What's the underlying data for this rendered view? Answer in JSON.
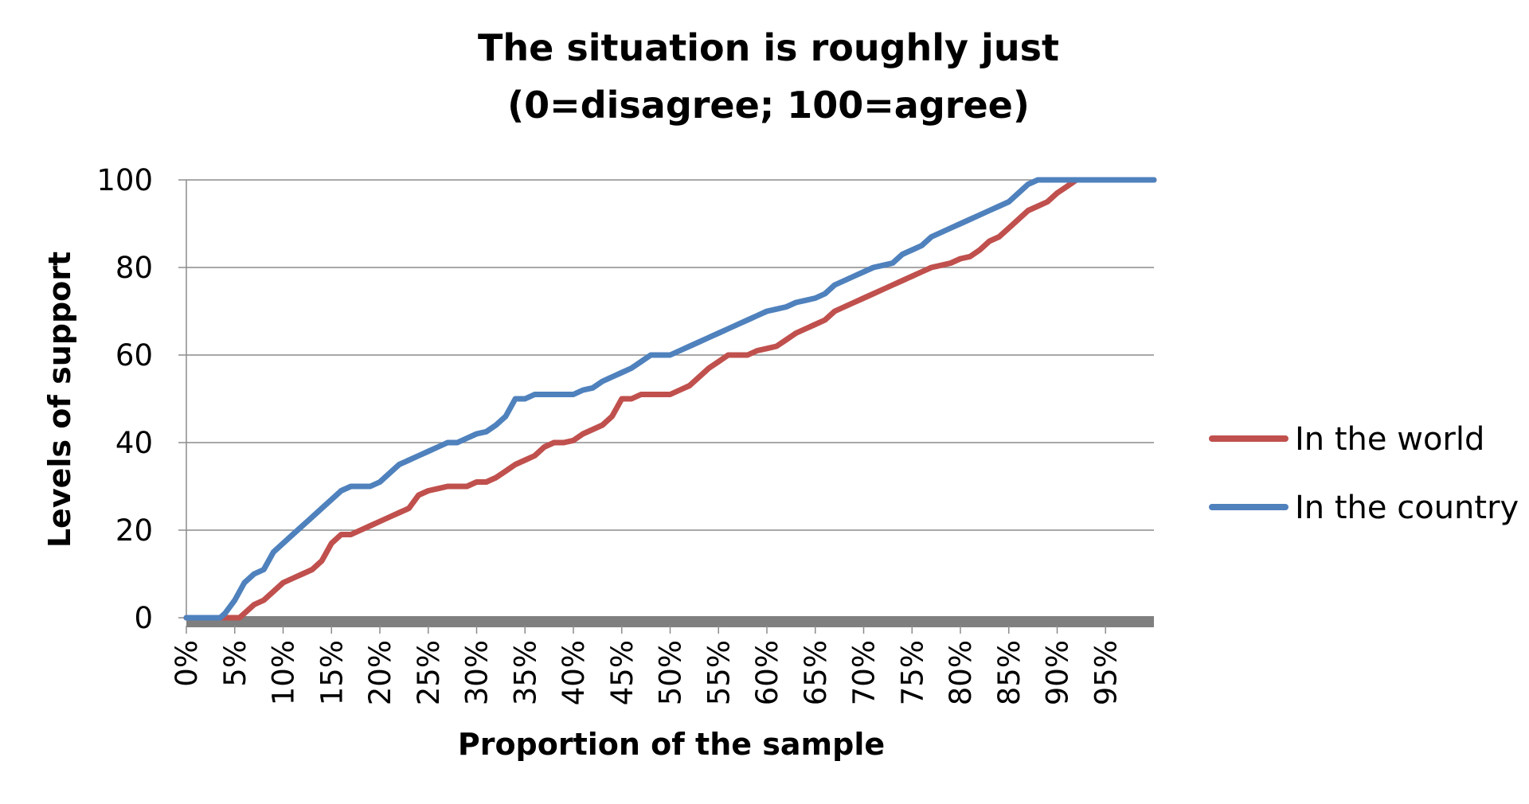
{
  "chart_data": {
    "type": "line",
    "title": "The situation is roughly just",
    "subtitle": "(0=disagree; 100=agree)",
    "xlabel": "Proportion of the sample",
    "ylabel": "Levels of support",
    "x_tick_labels": [
      "0%",
      "5%",
      "10%",
      "15%",
      "20%",
      "25%",
      "30%",
      "35%",
      "40%",
      "45%",
      "50%",
      "55%",
      "60%",
      "65%",
      "70%",
      "75%",
      "80%",
      "85%",
      "90%",
      "95%"
    ],
    "x_tick_values": [
      0,
      5,
      10,
      15,
      20,
      25,
      30,
      35,
      40,
      45,
      50,
      55,
      60,
      65,
      70,
      75,
      80,
      85,
      90,
      95
    ],
    "y_ticks": [
      0,
      20,
      40,
      60,
      80,
      100
    ],
    "y_tick_labels": [
      "0",
      "20",
      "40",
      "60",
      "80",
      "100"
    ],
    "xlim": [
      0,
      100
    ],
    "ylim": [
      0,
      100
    ],
    "grid": true,
    "legend_position": "right",
    "series": [
      {
        "name": "In the world",
        "color": "#C0504D",
        "points": [
          [
            0,
            0
          ],
          [
            5.5,
            0
          ],
          [
            6,
            1
          ],
          [
            7,
            3
          ],
          [
            8,
            4
          ],
          [
            9,
            6
          ],
          [
            10,
            8
          ],
          [
            11,
            9
          ],
          [
            12,
            10
          ],
          [
            13,
            11
          ],
          [
            14,
            13
          ],
          [
            15,
            17
          ],
          [
            16,
            19
          ],
          [
            17,
            19
          ],
          [
            18,
            20
          ],
          [
            19,
            21
          ],
          [
            20,
            22
          ],
          [
            21,
            23
          ],
          [
            22,
            24
          ],
          [
            23,
            25
          ],
          [
            24,
            28
          ],
          [
            25,
            29
          ],
          [
            26,
            29.5
          ],
          [
            27,
            30
          ],
          [
            29,
            30
          ],
          [
            30,
            31
          ],
          [
            31,
            31
          ],
          [
            32,
            32
          ],
          [
            33,
            33.5
          ],
          [
            34,
            35
          ],
          [
            35,
            36
          ],
          [
            36,
            37
          ],
          [
            37,
            39
          ],
          [
            38,
            40
          ],
          [
            39,
            40
          ],
          [
            40,
            40.5
          ],
          [
            41,
            42
          ],
          [
            42,
            43
          ],
          [
            43,
            44
          ],
          [
            44,
            46
          ],
          [
            45,
            50
          ],
          [
            46,
            50
          ],
          [
            47,
            51
          ],
          [
            50,
            51
          ],
          [
            51,
            52
          ],
          [
            52,
            53
          ],
          [
            53,
            55
          ],
          [
            54,
            57
          ],
          [
            55,
            58.5
          ],
          [
            56,
            60
          ],
          [
            57,
            60
          ],
          [
            58,
            60
          ],
          [
            59,
            61
          ],
          [
            60,
            61.5
          ],
          [
            61,
            62
          ],
          [
            62,
            63.5
          ],
          [
            63,
            65
          ],
          [
            64,
            66
          ],
          [
            65,
            67
          ],
          [
            66,
            68
          ],
          [
            67,
            70
          ],
          [
            68,
            71
          ],
          [
            69,
            72
          ],
          [
            70,
            73
          ],
          [
            71,
            74
          ],
          [
            72,
            75
          ],
          [
            73,
            76
          ],
          [
            74,
            77
          ],
          [
            75,
            78
          ],
          [
            76,
            79
          ],
          [
            77,
            80
          ],
          [
            78,
            80.5
          ],
          [
            79,
            81
          ],
          [
            80,
            82
          ],
          [
            81,
            82.5
          ],
          [
            82,
            84
          ],
          [
            83,
            86
          ],
          [
            84,
            87
          ],
          [
            85,
            89
          ],
          [
            86,
            91
          ],
          [
            87,
            93
          ],
          [
            88,
            94
          ],
          [
            89,
            95
          ],
          [
            90,
            97
          ],
          [
            91,
            98.5
          ],
          [
            92,
            100
          ],
          [
            100,
            100
          ]
        ]
      },
      {
        "name": "In the country",
        "color": "#4F81BD",
        "points": [
          [
            0,
            0
          ],
          [
            3.5,
            0
          ],
          [
            4,
            1
          ],
          [
            5,
            4
          ],
          [
            6,
            8
          ],
          [
            7,
            10
          ],
          [
            8,
            11
          ],
          [
            9,
            15
          ],
          [
            10,
            17
          ],
          [
            11,
            19
          ],
          [
            12,
            21
          ],
          [
            13,
            23
          ],
          [
            14,
            25
          ],
          [
            15,
            27
          ],
          [
            16,
            29
          ],
          [
            17,
            30
          ],
          [
            19,
            30
          ],
          [
            20,
            31
          ],
          [
            21,
            33
          ],
          [
            22,
            35
          ],
          [
            23,
            36
          ],
          [
            24,
            37
          ],
          [
            25,
            38
          ],
          [
            26,
            39
          ],
          [
            27,
            40
          ],
          [
            28,
            40
          ],
          [
            29,
            41
          ],
          [
            30,
            42
          ],
          [
            31,
            42.5
          ],
          [
            32,
            44
          ],
          [
            33,
            46
          ],
          [
            34,
            50
          ],
          [
            35,
            50
          ],
          [
            36,
            51
          ],
          [
            40,
            51
          ],
          [
            41,
            52
          ],
          [
            42,
            52.5
          ],
          [
            43,
            54
          ],
          [
            44,
            55
          ],
          [
            45,
            56
          ],
          [
            46,
            57
          ],
          [
            47,
            58.5
          ],
          [
            48,
            60
          ],
          [
            50,
            60
          ],
          [
            51,
            61
          ],
          [
            52,
            62
          ],
          [
            53,
            63
          ],
          [
            54,
            64
          ],
          [
            55,
            65
          ],
          [
            56,
            66
          ],
          [
            57,
            67
          ],
          [
            58,
            68
          ],
          [
            59,
            69
          ],
          [
            60,
            70
          ],
          [
            61,
            70.5
          ],
          [
            62,
            71
          ],
          [
            63,
            72
          ],
          [
            64,
            72.5
          ],
          [
            65,
            73
          ],
          [
            66,
            74
          ],
          [
            67,
            76
          ],
          [
            68,
            77
          ],
          [
            69,
            78
          ],
          [
            70,
            79
          ],
          [
            71,
            80
          ],
          [
            72,
            80.5
          ],
          [
            73,
            81
          ],
          [
            74,
            83
          ],
          [
            75,
            84
          ],
          [
            76,
            85
          ],
          [
            77,
            87
          ],
          [
            78,
            88
          ],
          [
            79,
            89
          ],
          [
            80,
            90
          ],
          [
            81,
            91
          ],
          [
            82,
            92
          ],
          [
            83,
            93
          ],
          [
            84,
            94
          ],
          [
            85,
            95
          ],
          [
            86,
            97
          ],
          [
            87,
            99
          ],
          [
            88,
            100
          ],
          [
            100,
            100
          ]
        ]
      }
    ]
  }
}
